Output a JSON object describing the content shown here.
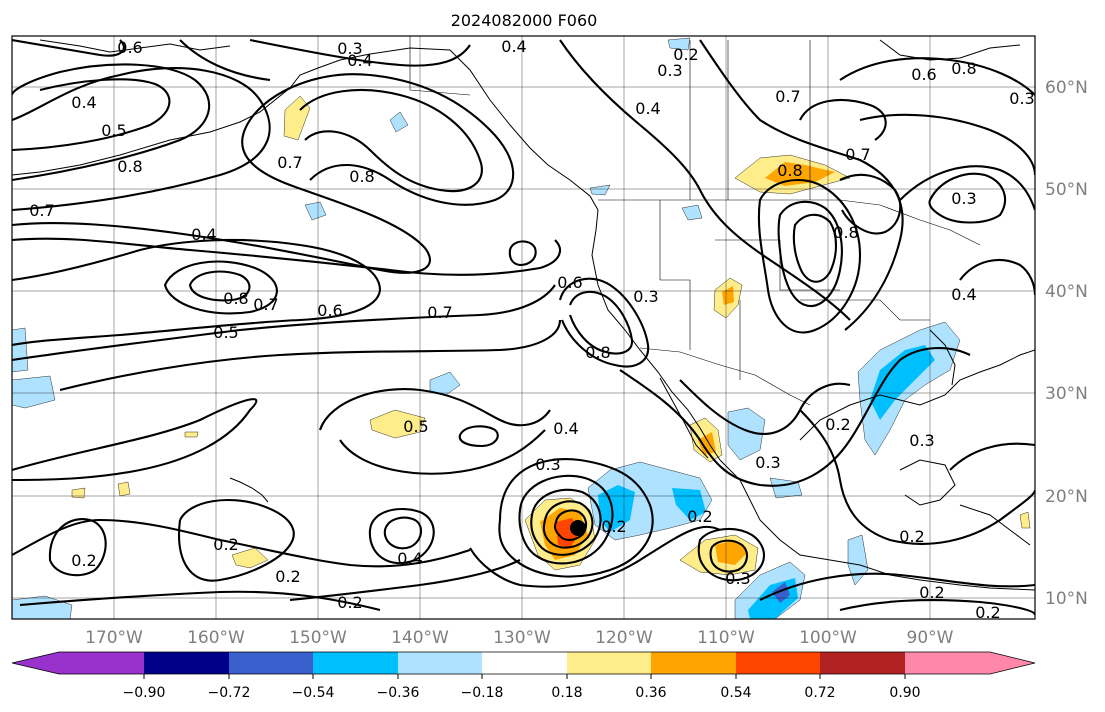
{
  "title": "2024082000 F060",
  "map": {
    "lat_labels": [
      "60°N",
      "50°N",
      "40°N",
      "30°N",
      "20°N",
      "10°N"
    ],
    "lon_labels": [
      "170°W",
      "160°W",
      "150°W",
      "140°W",
      "130°W",
      "120°W",
      "110°W",
      "100°W",
      "90°W"
    ],
    "contour_labels": [
      "0.3",
      "0.4",
      "0.4",
      "0.6",
      "0.2",
      "0.3",
      "0.4",
      "0.7",
      "0.6",
      "0.8",
      "0.4",
      "0.5",
      "0.8",
      "0.7",
      "0.8",
      "0.7",
      "0.8",
      "0.7",
      "0.8",
      "0.3",
      "0.4",
      "0.8",
      "0.7",
      "0.6",
      "0.7",
      "0.5",
      "0.6",
      "0.3",
      "0.8",
      "0.4",
      "0.5",
      "0.4",
      "0.3",
      "0.2",
      "0.3",
      "0.2",
      "0.2",
      "0.2",
      "0.2",
      "0.4",
      "0.2",
      "0.3",
      "0.2",
      "0.3",
      "0.2",
      "0.3",
      "0.2",
      "0.2"
    ]
  },
  "colorbar": {
    "ticks": [
      "−0.90",
      "−0.72",
      "−0.54",
      "−0.36",
      "−0.18",
      "0.18",
      "0.36",
      "0.54",
      "0.72",
      "0.90"
    ],
    "colors": [
      "#9932cc",
      "#00008b",
      "#3a5fcd",
      "#00bfff",
      "#aee2ff",
      "#ffffff",
      "#ffec8b",
      "#ffa500",
      "#ff4500",
      "#b22222",
      "#ff88aa"
    ]
  }
}
